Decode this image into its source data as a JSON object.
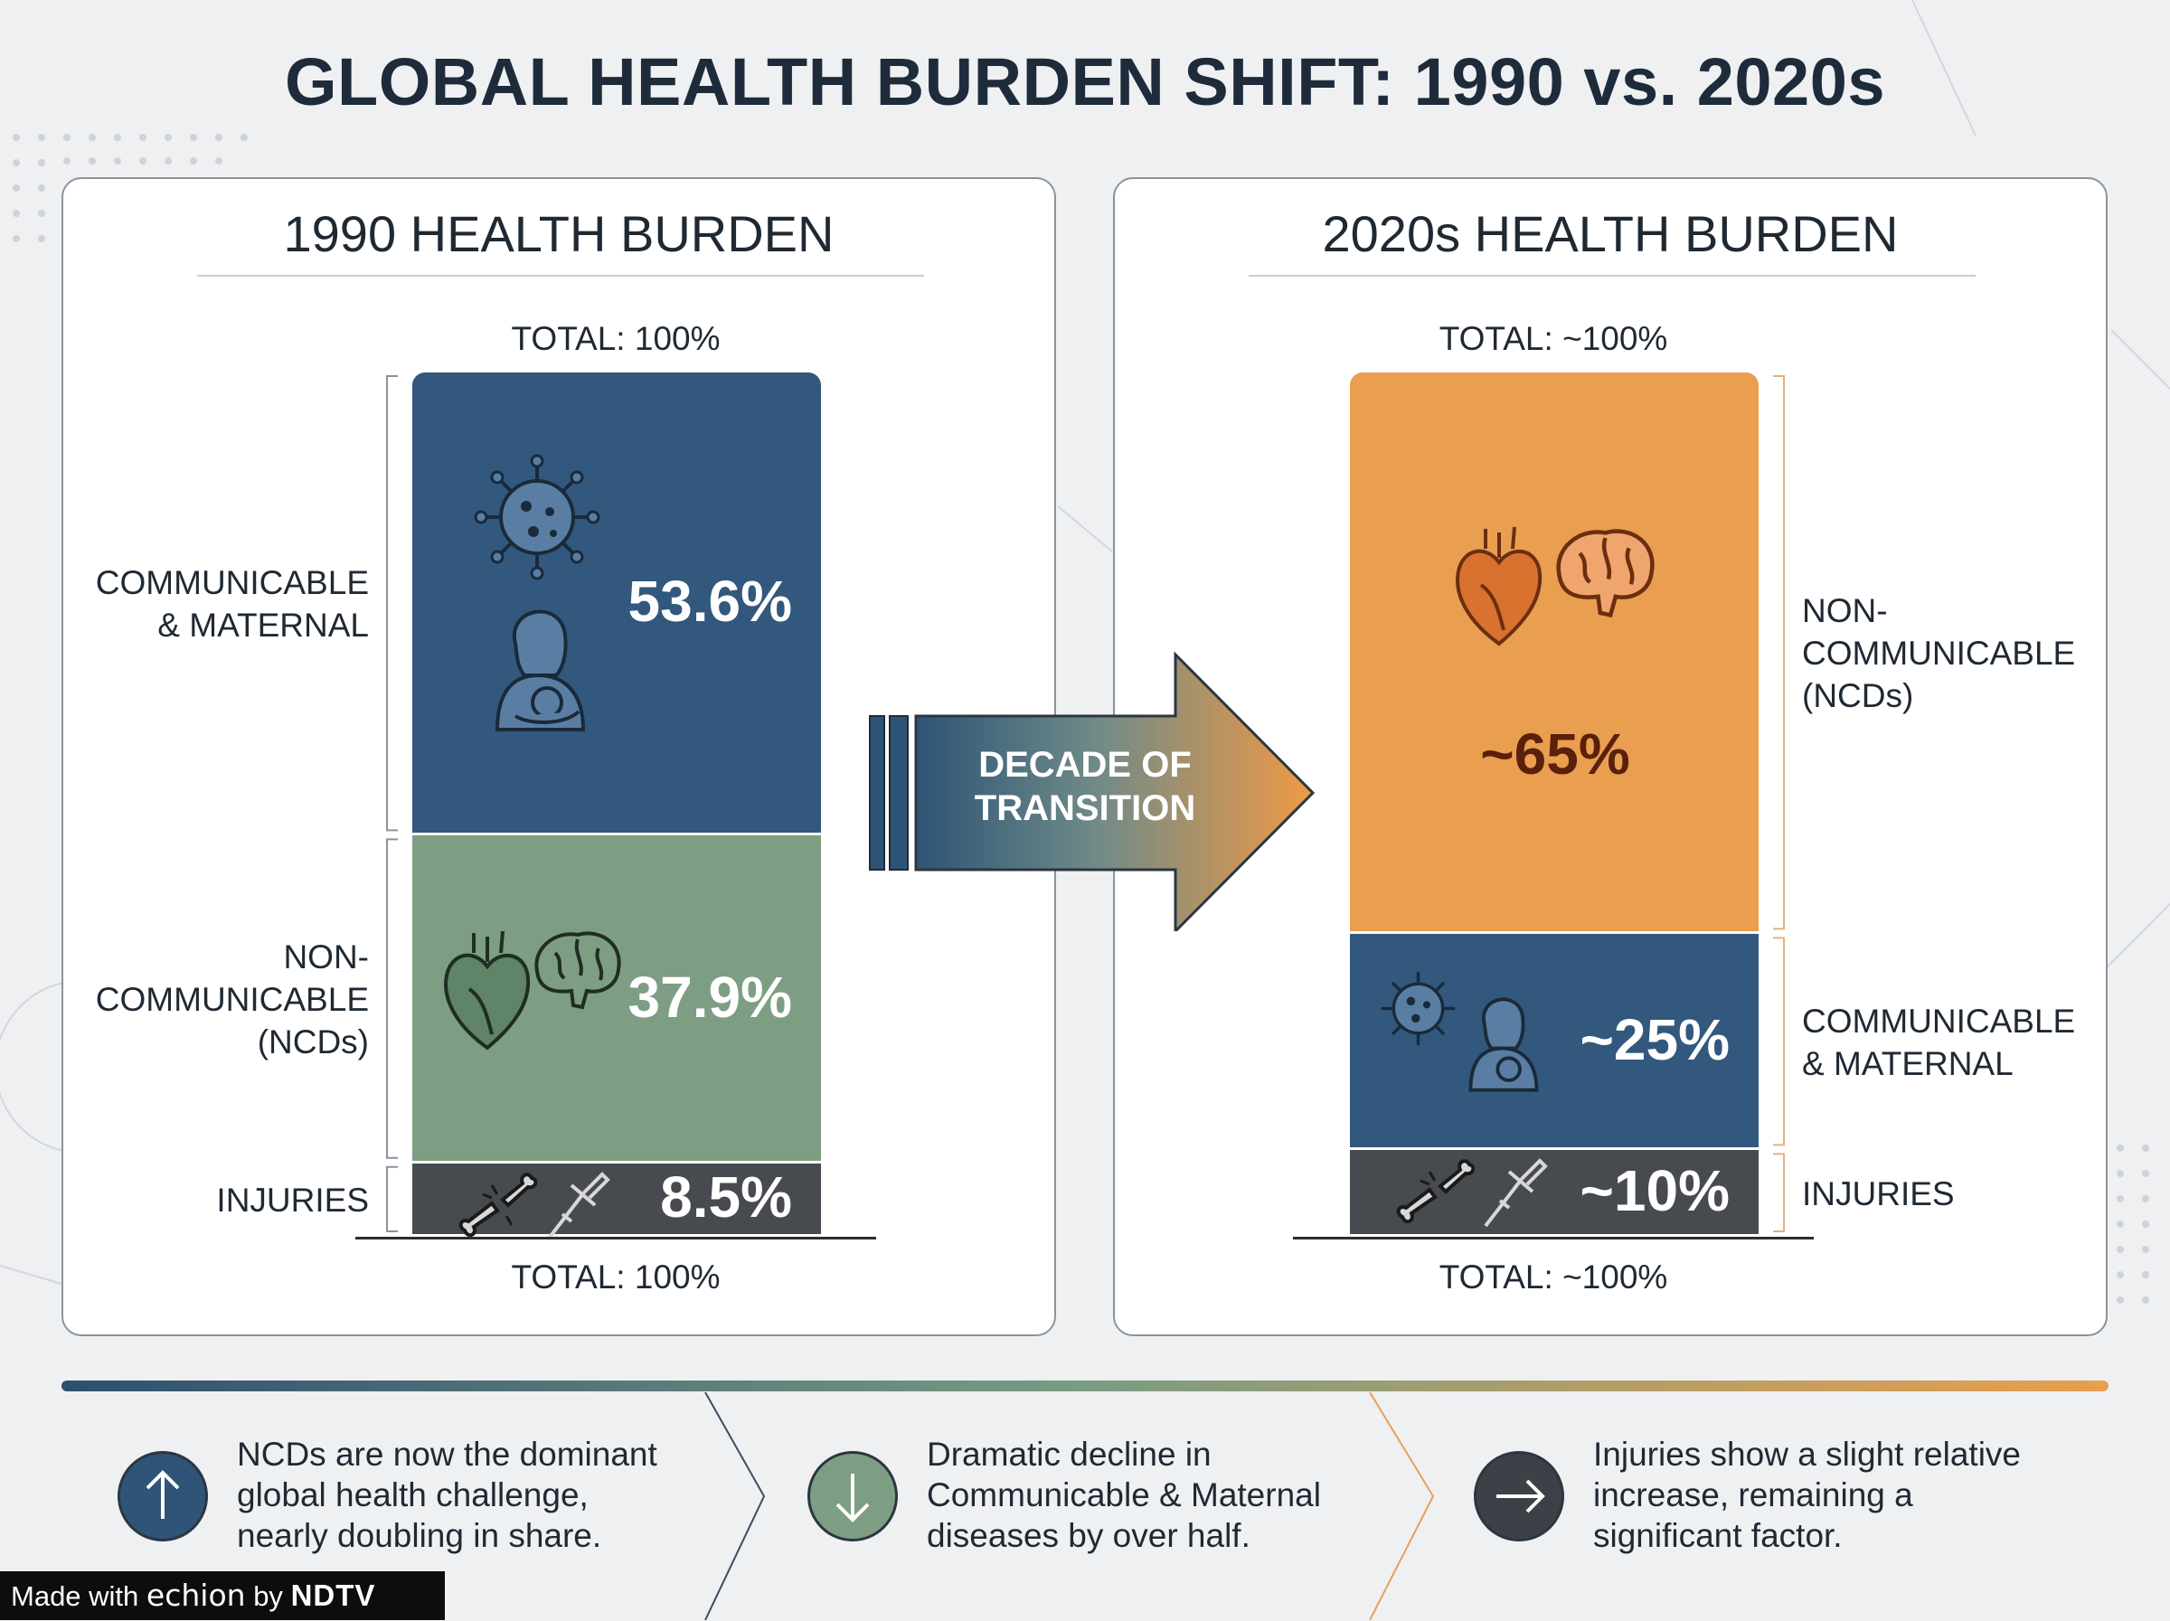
{
  "title": "GLOBAL HEALTH BURDEN SHIFT: 1990 vs. 2020s",
  "colors": {
    "communicable": "#33587d",
    "ncd_1990": "#7d9e83",
    "ncd_2020": "#e99f4f",
    "injuries": "#474a4f"
  },
  "chart_data": [
    {
      "type": "stacked-bar",
      "title": "1990 HEALTH BURDEN",
      "total_label": "TOTAL: 100%",
      "segments": [
        {
          "name": "COMMUNICABLE & MATERNAL",
          "label_lines": [
            "COMMUNICABLE",
            "& MATERNAL"
          ],
          "value": 53.6,
          "display": "53.6%",
          "icons": [
            "virus-icon",
            "mother-child-icon"
          ]
        },
        {
          "name": "NON-COMMUNICABLE (NCDs)",
          "label_lines": [
            "NON-",
            "COMMUNICABLE",
            "(NCDs)"
          ],
          "value": 37.9,
          "display": "37.9%",
          "icons": [
            "heart-icon",
            "brain-icon"
          ]
        },
        {
          "name": "INJURIES",
          "label_lines": [
            "INJURIES"
          ],
          "value": 8.5,
          "display": "8.5%",
          "icons": [
            "broken-bone-icon",
            "crutch-icon"
          ]
        }
      ]
    },
    {
      "type": "stacked-bar",
      "title": "2020s HEALTH BURDEN",
      "total_label": "TOTAL: ~100%",
      "segments": [
        {
          "name": "NON-COMMUNICABLE (NCDs)",
          "label_lines": [
            "NON-",
            "COMMUNICABLE",
            "(NCDs)"
          ],
          "value": 65,
          "display": "~65%",
          "icons": [
            "heart-icon",
            "brain-icon"
          ]
        },
        {
          "name": "COMMUNICABLE & MATERNAL",
          "label_lines": [
            "COMMUNICABLE",
            "& MATERNAL"
          ],
          "value": 25,
          "display": "~25%",
          "icons": [
            "virus-icon",
            "mother-child-icon"
          ]
        },
        {
          "name": "INJURIES",
          "label_lines": [
            "INJURIES"
          ],
          "value": 10,
          "display": "~10%",
          "icons": [
            "broken-bone-icon",
            "crutch-icon"
          ]
        }
      ]
    }
  ],
  "transition_arrow": {
    "lines": [
      "DECADE OF",
      "TRANSITION"
    ]
  },
  "insights": [
    {
      "icon": "arrow-up-icon",
      "lines": [
        "NCDs are now the dominant",
        "global health challenge,",
        "nearly doubling in share."
      ]
    },
    {
      "icon": "arrow-down-icon",
      "lines": [
        "Dramatic decline in",
        "Communicable & Maternal",
        "diseases by over half."
      ]
    },
    {
      "icon": "arrow-right-icon",
      "lines": [
        "Injuries show a slight relative",
        "increase, remaining a",
        "significant factor."
      ]
    }
  ],
  "footer": {
    "prefix": "Made with",
    "brand": "echion",
    "by": "by",
    "network": "NDTV"
  }
}
